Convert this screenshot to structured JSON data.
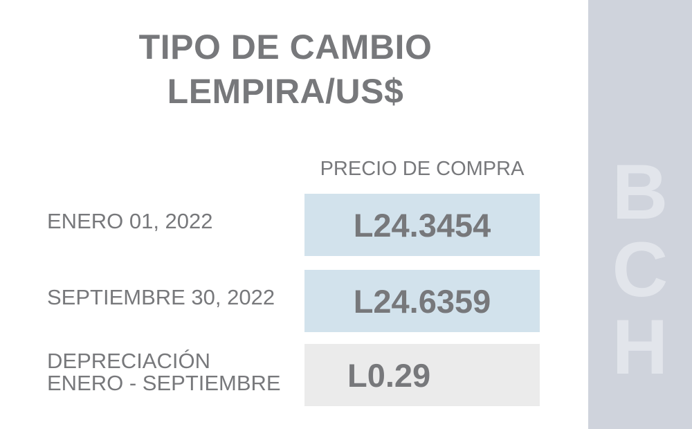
{
  "title": {
    "line1": "TIPO DE CAMBIO",
    "line2": "LEMPIRA/US$"
  },
  "table": {
    "column_header": "PRECIO DE COMPRA",
    "rows": [
      {
        "label_lines": [
          "ENERO 01, 2022"
        ],
        "value": "L24.3454",
        "style": "blue"
      },
      {
        "label_lines": [
          "SEPTIEMBRE 30, 2022"
        ],
        "value": "L24.6359",
        "style": "blue"
      },
      {
        "label_lines": [
          "DEPRECIACIÓN",
          "ENERO - SEPTIEMBRE"
        ],
        "value": "L0.29",
        "style": "gray"
      }
    ]
  },
  "side_panel": {
    "letters": [
      "B",
      "C",
      "H"
    ]
  },
  "colors": {
    "text": "#77787b",
    "value_highlight": "#d2e2ec",
    "value_neutral": "#ebebeb",
    "side_panel": "#cfd3dc",
    "side_letters": "#e2e5eb"
  }
}
